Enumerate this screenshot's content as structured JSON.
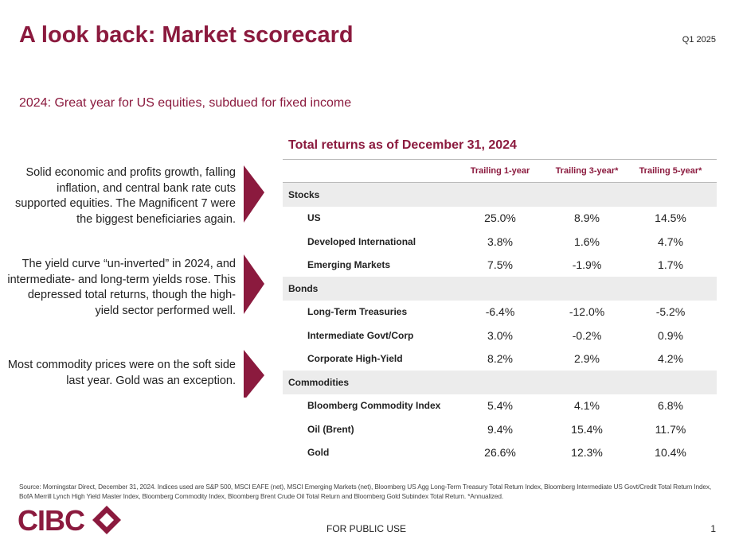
{
  "header": {
    "title": "A look back: Market scorecard",
    "tag": "Q1 2025"
  },
  "subtitle": "2024: Great year for US equities, subdued for fixed income",
  "notes": [
    "Solid economic and profits growth, falling inflation, and central bank rate cuts supported equities. The Magnificent 7 were the biggest beneficiaries again.",
    "The yield curve “un-inverted” in 2024, and intermediate- and long-term yields rose. This depressed total returns, though the high-yield sector performed well.",
    "Most commodity prices were on the soft side last year. Gold was an exception."
  ],
  "table": {
    "title": "Total returns as of December 31, 2024",
    "columns": [
      "Trailing 1-year",
      "Trailing 3-year*",
      "Trailing 5-year*"
    ],
    "groups": [
      {
        "name": "Stocks",
        "rows": [
          {
            "label": "US",
            "values": [
              "25.0%",
              "8.9%",
              "14.5%"
            ]
          },
          {
            "label": "Developed International",
            "values": [
              "3.8%",
              "1.6%",
              "4.7%"
            ]
          },
          {
            "label": "Emerging Markets",
            "values": [
              "7.5%",
              "-1.9%",
              "1.7%"
            ]
          }
        ]
      },
      {
        "name": "Bonds",
        "rows": [
          {
            "label": "Long-Term Treasuries",
            "values": [
              "-6.4%",
              "-12.0%",
              "-5.2%"
            ]
          },
          {
            "label": "Intermediate Govt/Corp",
            "values": [
              "3.0%",
              "-0.2%",
              "0.9%"
            ]
          },
          {
            "label": "Corporate High-Yield",
            "values": [
              "8.2%",
              "2.9%",
              "4.2%"
            ]
          }
        ]
      },
      {
        "name": "Commodities",
        "rows": [
          {
            "label": "Bloomberg Commodity Index",
            "values": [
              "5.4%",
              "4.1%",
              "6.8%"
            ]
          },
          {
            "label": "Oil (Brent)",
            "values": [
              "9.4%",
              "15.4%",
              "11.7%"
            ]
          },
          {
            "label": "Gold",
            "values": [
              "26.6%",
              "12.3%",
              "10.4%"
            ]
          }
        ]
      }
    ]
  },
  "footer": {
    "source": "Source: Morningstar Direct, December 31, 2024. Indices used are S&P 500, MSCI EAFE (net), MSCI Emerging Markets (net), Bloomberg US Agg Long-Term Treasury Total Return Index, Bloomberg Intermediate US Govt/Credit Total Return Index, BofA Merrill Lynch High Yield Master Index, Bloomberg Commodity Index, Bloomberg Brent Crude Oil Total Return and Bloomberg Gold Subindex Total Return. *Annualized.",
    "logo": "CIBC",
    "classification": "FOR PUBLIC USE",
    "page": "1"
  }
}
